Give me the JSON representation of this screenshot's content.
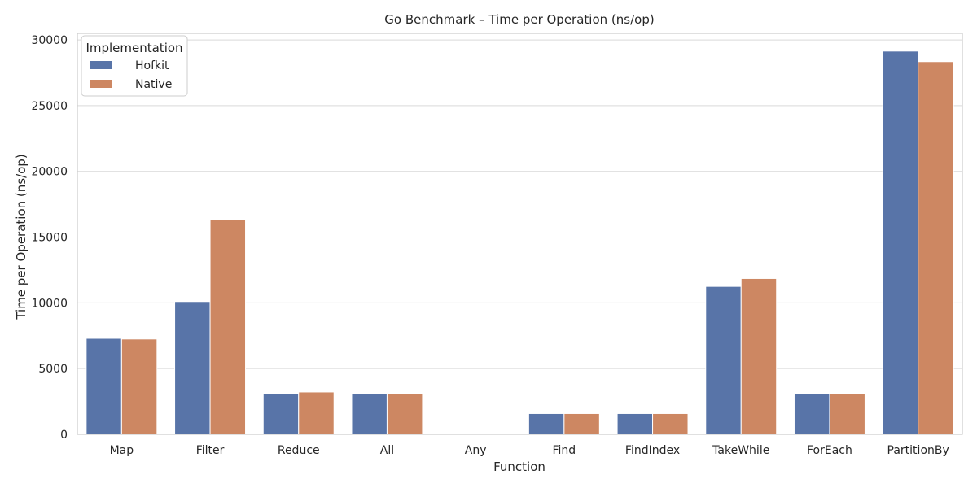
{
  "chart_data": {
    "type": "bar",
    "title": "Go Benchmark – Time per Operation (ns/op)",
    "xlabel": "Function",
    "ylabel": "Time per Operation (ns/op)",
    "categories": [
      "Map",
      "Filter",
      "Reduce",
      "All",
      "Any",
      "Find",
      "FindIndex",
      "TakeWhile",
      "ForEach",
      "PartitionBy"
    ],
    "series": [
      {
        "name": "Hofkit",
        "color": "#5874a8",
        "values": [
          7300,
          10100,
          3120,
          3120,
          5,
          1580,
          1580,
          11250,
          3120,
          29150
        ]
      },
      {
        "name": "Native",
        "color": "#cd8762",
        "values": [
          7250,
          16350,
          3220,
          3120,
          5,
          1580,
          1580,
          11850,
          3120,
          28350
        ]
      }
    ],
    "ylim": [
      0,
      30500
    ],
    "yticks": [
      0,
      5000,
      10000,
      15000,
      20000,
      25000,
      30000
    ],
    "grid": true,
    "legend": {
      "title": "Implementation",
      "placement": "top-left"
    }
  }
}
